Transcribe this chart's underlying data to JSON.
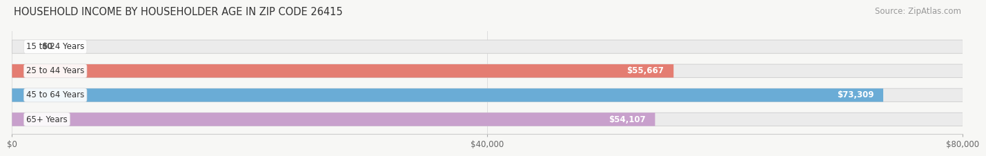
{
  "title": "HOUSEHOLD INCOME BY HOUSEHOLDER AGE IN ZIP CODE 26415",
  "source": "Source: ZipAtlas.com",
  "categories": [
    "15 to 24 Years",
    "25 to 44 Years",
    "45 to 64 Years",
    "65+ Years"
  ],
  "values": [
    0,
    55667,
    73309,
    54107
  ],
  "bar_colors": [
    "#f0bc96",
    "#e47d72",
    "#6aacd6",
    "#c8a0cc"
  ],
  "value_labels": [
    "$0",
    "$55,667",
    "$73,309",
    "$54,107"
  ],
  "xlim": [
    0,
    80000
  ],
  "xticks": [
    0,
    40000,
    80000
  ],
  "xtick_labels": [
    "$0",
    "$40,000",
    "$80,000"
  ],
  "background_color": "#f7f7f5",
  "bar_background_color": "#ebebeb",
  "title_fontsize": 10.5,
  "source_fontsize": 8.5,
  "label_fontsize": 8.5,
  "tick_fontsize": 8.5
}
